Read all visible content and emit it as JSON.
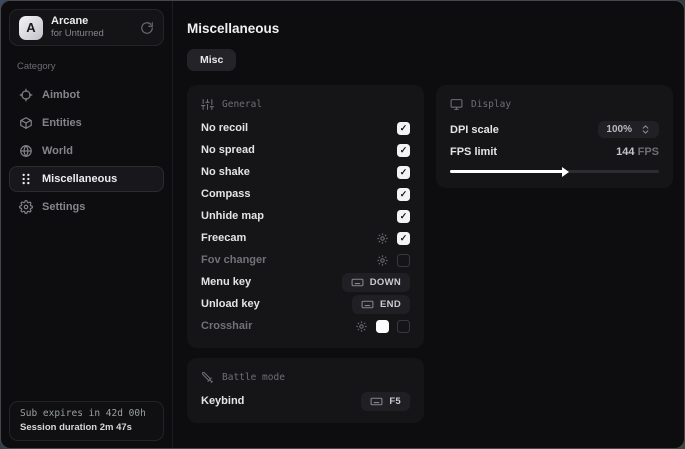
{
  "brand": {
    "name": "Arcane",
    "subtitle": "for Unturned"
  },
  "sidebar": {
    "category_label": "Category",
    "items": [
      {
        "label": "Aimbot",
        "icon": "crosshair-icon",
        "active": false
      },
      {
        "label": "Entities",
        "icon": "cube-icon",
        "active": false
      },
      {
        "label": "World",
        "icon": "globe-icon",
        "active": false
      },
      {
        "label": "Miscellaneous",
        "icon": "grid-dots-icon",
        "active": true
      },
      {
        "label": "Settings",
        "icon": "gear-icon",
        "active": false
      }
    ],
    "status": {
      "line1": "Sub expires in 42d 00h",
      "line2": "Session duration 2m 47s"
    }
  },
  "main": {
    "title": "Miscellaneous",
    "tab": "Misc",
    "general": {
      "title": "General",
      "icon": "sliders-icon",
      "rows": [
        {
          "label": "No recoil",
          "type": "checkbox",
          "checked": true
        },
        {
          "label": "No spread",
          "type": "checkbox",
          "checked": true
        },
        {
          "label": "No shake",
          "type": "checkbox",
          "checked": true
        },
        {
          "label": "Compass",
          "type": "checkbox",
          "checked": true
        },
        {
          "label": "Unhide map",
          "type": "checkbox",
          "checked": true
        },
        {
          "label": "Freecam",
          "type": "checkbox",
          "checked": true,
          "has_settings": true
        },
        {
          "label": "Fov changer",
          "type": "checkbox",
          "checked": false,
          "has_settings": true,
          "dimmed": true
        },
        {
          "label": "Menu key",
          "type": "keybind",
          "key": "DOWN"
        },
        {
          "label": "Unload key",
          "type": "keybind",
          "key": "END"
        },
        {
          "label": "Crosshair",
          "type": "checkbox",
          "checked": false,
          "has_settings": true,
          "dimmed": true,
          "color": "#ffffff"
        }
      ]
    },
    "battle": {
      "title": "Battle mode",
      "icon": "swords-icon",
      "rows": [
        {
          "label": "Keybind",
          "type": "keybind",
          "key": "F5"
        }
      ]
    },
    "display": {
      "title": "Display",
      "icon": "monitor-icon",
      "dpi_label": "DPI scale",
      "dpi_value": "100%",
      "fps_label": "FPS limit",
      "fps_value": "144",
      "fps_unit": "FPS",
      "slider_percent": 55
    }
  },
  "colors": {
    "accent": "#ffffff",
    "panel_bg": "#151518",
    "window_bg": "#0d0d0f",
    "crosshair_swatch": "#ffffff"
  }
}
